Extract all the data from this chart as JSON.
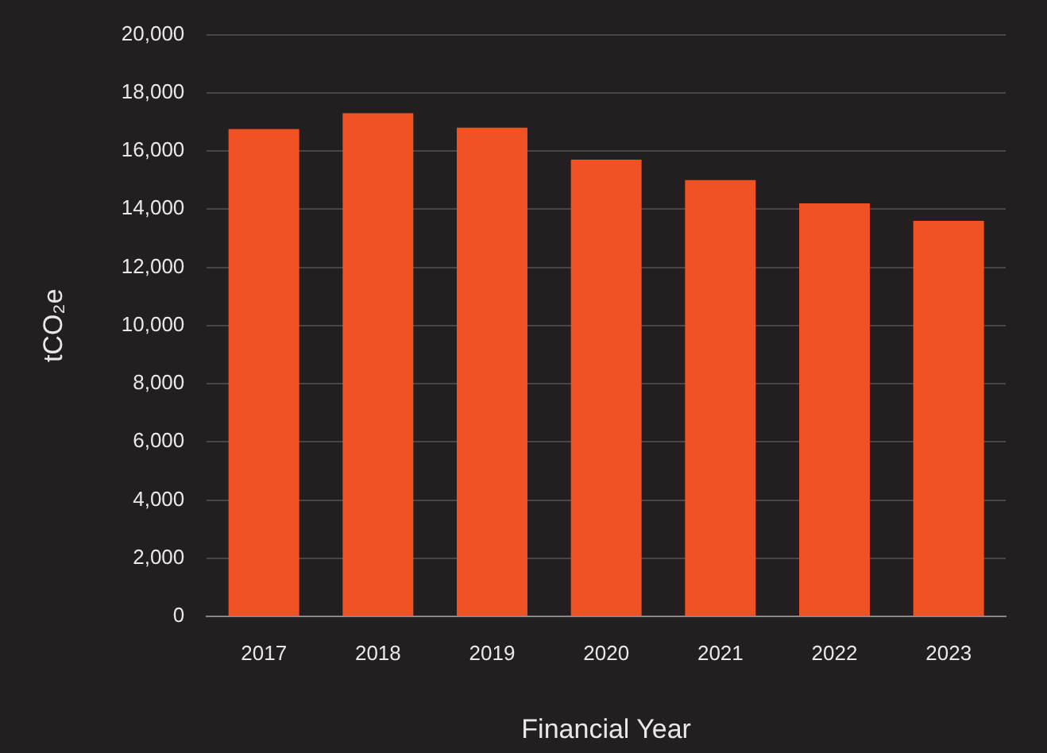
{
  "chart_data": {
    "type": "bar",
    "xlabel": "Financial Year",
    "ylabel": "tCO₂e",
    "categories": [
      "2017",
      "2018",
      "2019",
      "2020",
      "2021",
      "2022",
      "2023"
    ],
    "values": [
      16750,
      17300,
      16800,
      15700,
      15000,
      14200,
      13600
    ],
    "color": "#f05223",
    "ylim": [
      0,
      20000
    ],
    "yticks": [
      0,
      {
        "value": 2000,
        "label": "2,000"
      },
      {
        "value": 4000,
        "label": "4,000"
      },
      {
        "value": 6000,
        "label": "6,000"
      },
      {
        "value": 8000,
        "label": "8,000"
      },
      {
        "value": 10000,
        "label": "10,000"
      },
      {
        "value": 12000,
        "label": "12,000"
      },
      {
        "value": 14000,
        "label": "14,000"
      },
      {
        "value": 16000,
        "label": "16,000"
      },
      {
        "value": 18000,
        "label": "18,000"
      },
      {
        "value": 20000,
        "label": "20,000"
      }
    ],
    "grid": "y",
    "legend": false
  }
}
